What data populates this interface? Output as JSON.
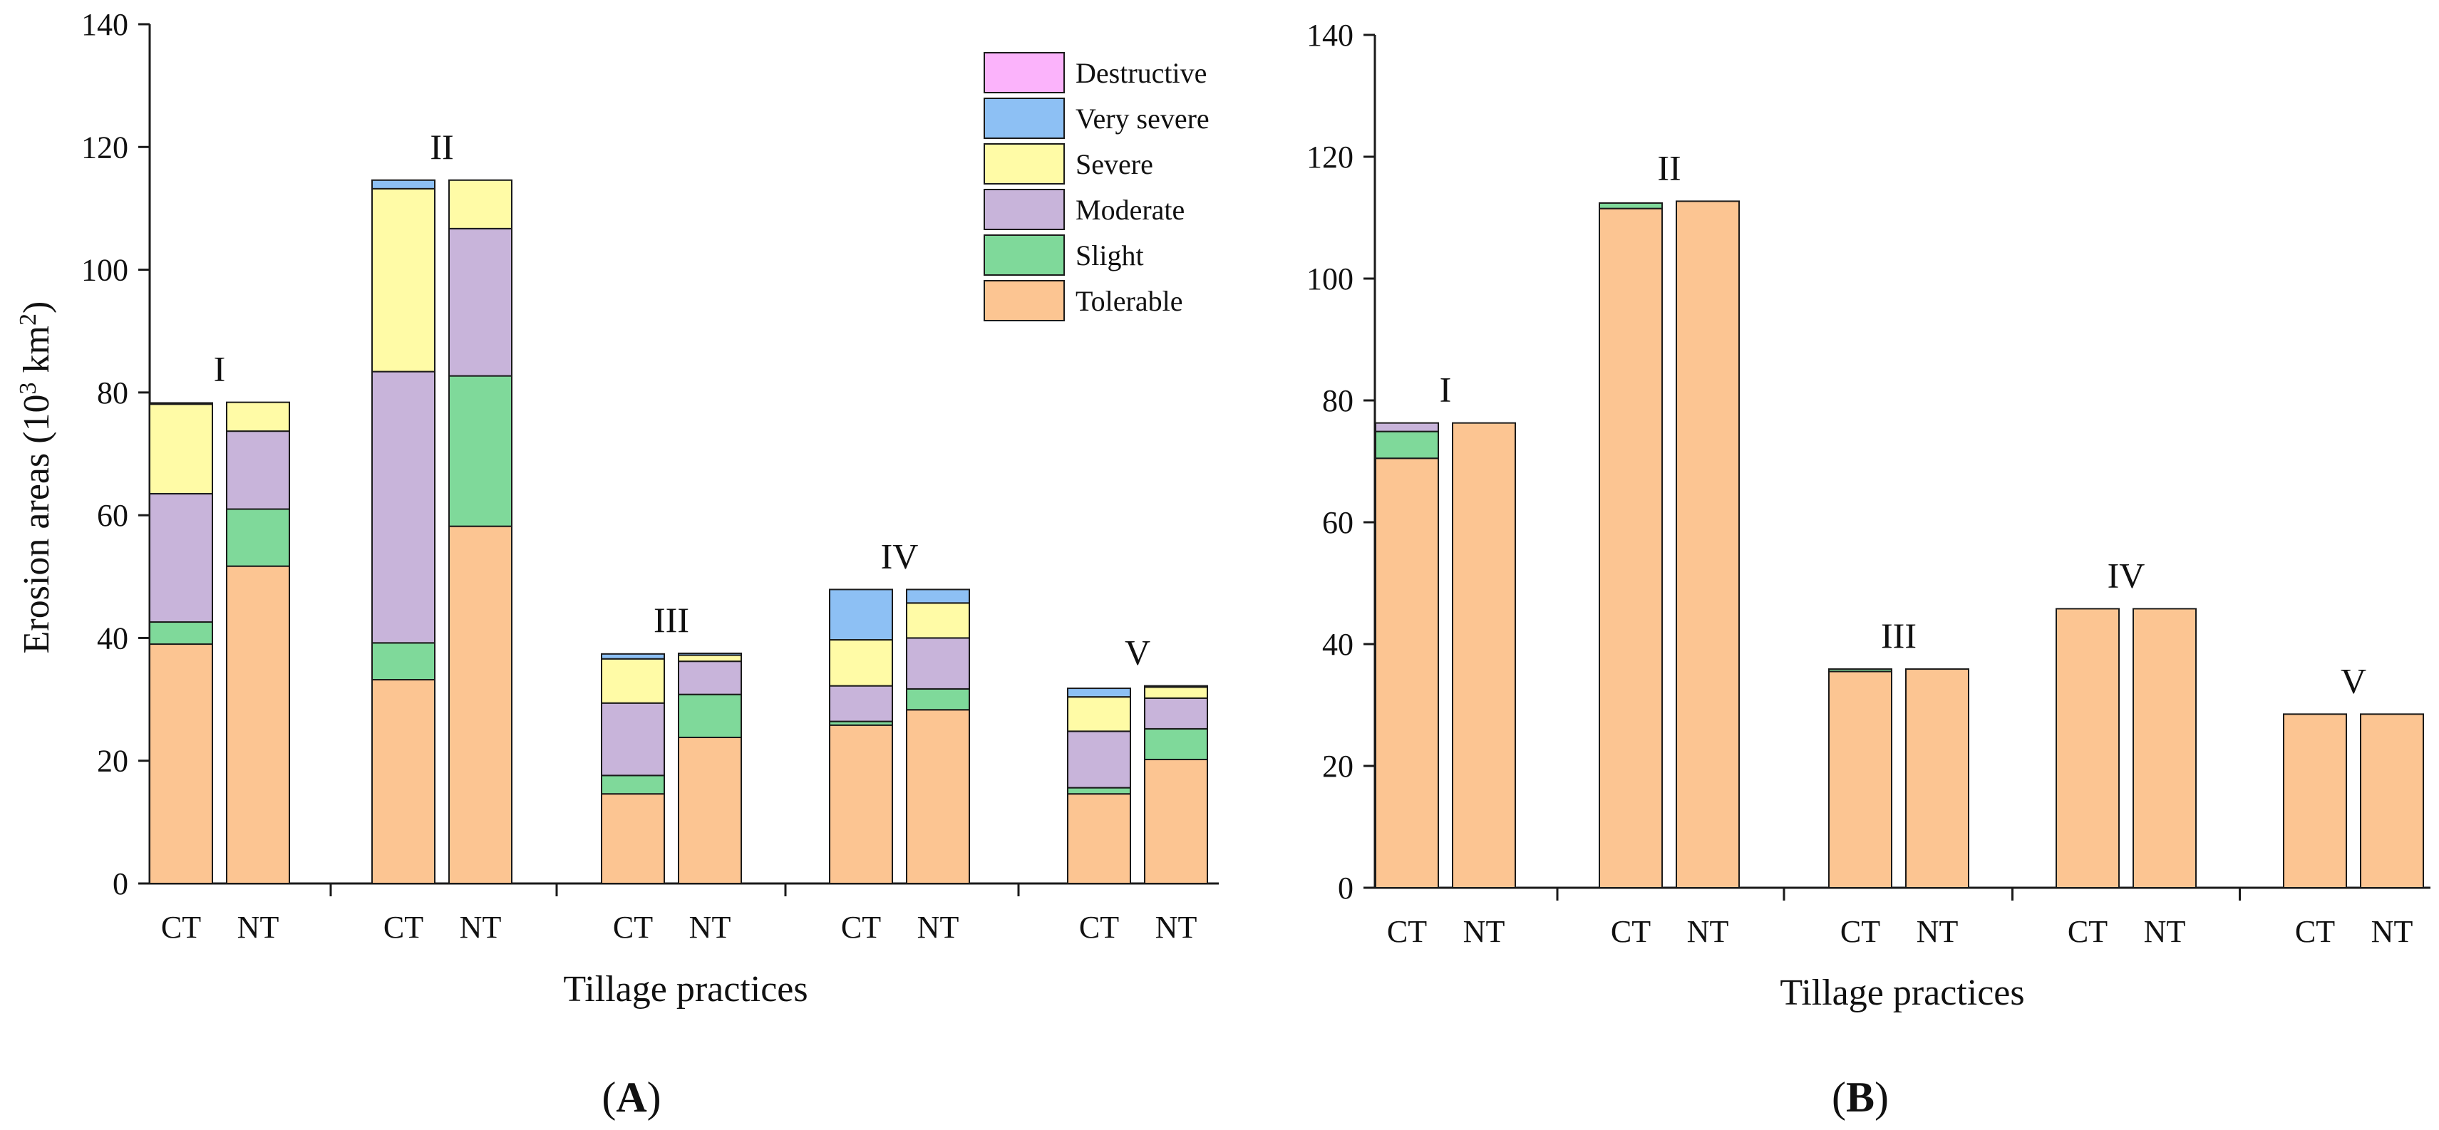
{
  "chart_data": [
    {
      "type": "bar",
      "stacked": true,
      "panel_label": "A",
      "xlabel": "Tillage practices",
      "ylabel_main": "Erosion areas (10",
      "ylabel_sup1": "3",
      "ylabel_mid": " km",
      "ylabel_sup2": "2",
      "ylabel_end": ")",
      "ylim": [
        0,
        140
      ],
      "yticks": [
        0,
        20,
        40,
        60,
        80,
        100,
        120,
        140
      ],
      "groups": [
        "I",
        "II",
        "III",
        "IV",
        "V"
      ],
      "categories": [
        "CT",
        "NT"
      ],
      "legend_position": "top-right",
      "series": [
        {
          "name": "Tolerable",
          "color": "#FCC592",
          "values": [
            [
              39.0,
              51.7
            ],
            [
              33.2,
              58.2
            ],
            [
              14.6,
              23.8
            ],
            [
              25.8,
              28.3
            ],
            [
              14.6,
              20.2
            ]
          ]
        },
        {
          "name": "Slight",
          "color": "#7FD99A",
          "values": [
            [
              3.6,
              9.3
            ],
            [
              6.0,
              24.5
            ],
            [
              3.0,
              7.0
            ],
            [
              0.6,
              3.4
            ],
            [
              1.0,
              5.0
            ]
          ]
        },
        {
          "name": "Moderate",
          "color": "#C8B4DA",
          "values": [
            [
              20.9,
              12.7
            ],
            [
              44.2,
              24.0
            ],
            [
              11.8,
              5.4
            ],
            [
              5.8,
              8.3
            ],
            [
              9.2,
              5.0
            ]
          ]
        },
        {
          "name": "Severe",
          "color": "#FFFBA6",
          "values": [
            [
              14.6,
              4.7
            ],
            [
              29.8,
              7.9
            ],
            [
              7.2,
              1.0
            ],
            [
              7.5,
              5.7
            ],
            [
              5.6,
              1.8
            ]
          ]
        },
        {
          "name": "Very severe",
          "color": "#8DC0F4",
          "values": [
            [
              0.2,
              0.0
            ],
            [
              1.4,
              0.0
            ],
            [
              0.8,
              0.3
            ],
            [
              8.2,
              2.2
            ],
            [
              1.4,
              0.2
            ]
          ]
        },
        {
          "name": "Destructive",
          "color": "#FBB3FB",
          "values": [
            [
              0.0,
              0.0
            ],
            [
              0.0,
              0.0
            ],
            [
              0.0,
              0.0
            ],
            [
              0.0,
              0.0
            ],
            [
              0.0,
              0.0
            ]
          ]
        }
      ]
    },
    {
      "type": "bar",
      "stacked": true,
      "panel_label": "B",
      "xlabel": "Tillage practices",
      "ylim": [
        0,
        140
      ],
      "yticks": [
        0,
        20,
        40,
        60,
        80,
        100,
        120,
        140
      ],
      "groups": [
        "I",
        "II",
        "III",
        "IV",
        "V"
      ],
      "categories": [
        "CT",
        "NT"
      ],
      "series": [
        {
          "name": "Tolerable",
          "color": "#FCC592",
          "values": [
            [
              70.5,
              76.3
            ],
            [
              111.5,
              112.7
            ],
            [
              35.5,
              35.9
            ],
            [
              45.8,
              45.8
            ],
            [
              28.5,
              28.5
            ]
          ]
        },
        {
          "name": "Slight",
          "color": "#7FD99A",
          "values": [
            [
              4.4,
              0.0
            ],
            [
              0.9,
              0.0
            ],
            [
              0.4,
              0.0
            ],
            [
              0.0,
              0.0
            ],
            [
              0.0,
              0.0
            ]
          ]
        },
        {
          "name": "Moderate",
          "color": "#C8B4DA",
          "values": [
            [
              1.4,
              0.0
            ],
            [
              0.0,
              0.0
            ],
            [
              0.0,
              0.0
            ],
            [
              0.0,
              0.0
            ],
            [
              0.0,
              0.0
            ]
          ]
        },
        {
          "name": "Severe",
          "color": "#FFFBA6",
          "values": [
            [
              0.0,
              0.0
            ],
            [
              0.0,
              0.0
            ],
            [
              0.0,
              0.0
            ],
            [
              0.0,
              0.0
            ],
            [
              0.0,
              0.0
            ]
          ]
        },
        {
          "name": "Very severe",
          "color": "#8DC0F4",
          "values": [
            [
              0.0,
              0.0
            ],
            [
              0.0,
              0.0
            ],
            [
              0.0,
              0.0
            ],
            [
              0.0,
              0.0
            ],
            [
              0.0,
              0.0
            ]
          ]
        },
        {
          "name": "Destructive",
          "color": "#FBB3FB",
          "values": [
            [
              0.0,
              0.0
            ],
            [
              0.0,
              0.0
            ],
            [
              0.0,
              0.0
            ],
            [
              0.0,
              0.0
            ],
            [
              0.0,
              0.0
            ]
          ]
        }
      ]
    }
  ]
}
